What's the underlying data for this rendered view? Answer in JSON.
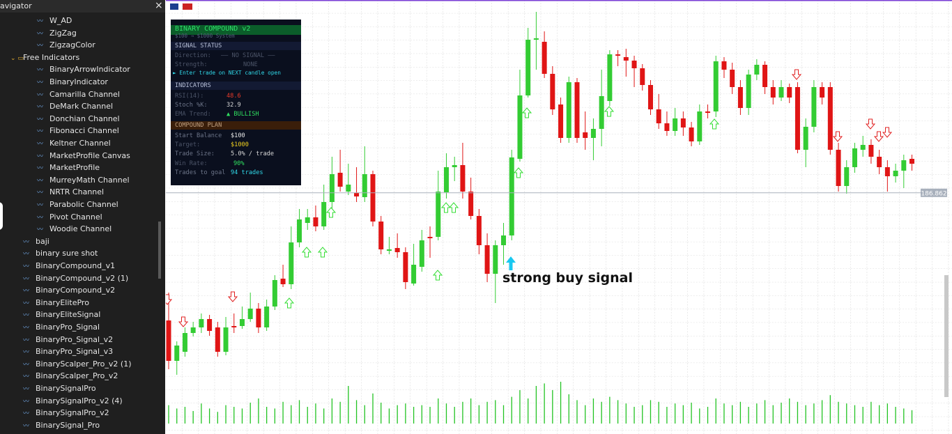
{
  "navigator": {
    "title": "avigator",
    "close": "×",
    "top_items": [
      "W_AD",
      "ZigZag",
      "ZigzagColor"
    ],
    "folder": {
      "name": "Free Indicators",
      "items": [
        "BinaryArrowIndicator",
        "BinaryIndicator",
        "Camarilla Channel",
        "DeMark Channel",
        "Donchian Channel",
        "Fibonacci Channel",
        "Keltner Channel",
        "MarketProfile Canvas",
        "MarketProfile",
        "MurreyMath Channel",
        "NRTR Channel",
        "Parabolic Channel",
        "Pivot Channel",
        "Woodie Channel"
      ]
    },
    "root_items": [
      "baji",
      "binary sure shot",
      "BinaryCompound_v1",
      "BinaryCompound_v2 (1)",
      "BinaryCompound_v2",
      "BinaryElitePro",
      "BinaryEliteSignal",
      "BinaryPro_Signal",
      "BinaryPro_Signal_v2",
      "BinaryPro_Signal_v3",
      "BinaryScalper_Pro_v2 (1)",
      "BinaryScalper_Pro_v2",
      "BinarySignalPro",
      "BinarySignalPro_v2 (4)",
      "BinarySignalPro_v2",
      "BinarySignal_Pro"
    ]
  },
  "panel": {
    "title": "BINARY COMPOUND v2",
    "subtitle": "$100 → $1000 System",
    "signal_header": "SIGNAL STATUS",
    "direction_label": "Direction:",
    "direction_value": "—— NO SIGNAL ——",
    "strength_label": "Strength:",
    "strength_value": "NONE",
    "instruction": "► Enter trade on NEXT candle open",
    "indicators_header": "INDICATORS",
    "rsi_label": "RSI(14):",
    "rsi_value": "48.6",
    "stoch_label": "Stoch %K:",
    "stoch_value": "32.9",
    "ema_label": "EMA Trend:",
    "ema_value": "▲ BULLISH",
    "plan_header": "COMPOUND PLAN",
    "start_label": "Start Balance",
    "start_value": "$100",
    "target_label": "Target:",
    "target_value": "$1000",
    "size_label": "Trade Size:",
    "size_value": "5.0% / trade",
    "winrate_label": "Win Rate:",
    "winrate_value": "90%",
    "trades_label": "Trades to goal",
    "trades_value": "94 trades"
  },
  "annotation": "strong buy signal",
  "chart_data": {
    "type": "candlestick",
    "ylim": [
      184.23,
      189.63
    ],
    "current_price": 186.862,
    "up_color": "#33cc33",
    "down_color": "#e01515",
    "volume_color": "#22c322",
    "volume_lim": [
      0,
      100
    ],
    "ohlc": [
      [
        185.03,
        185.43,
        184.33,
        184.45
      ],
      [
        184.45,
        184.73,
        184.25,
        184.67
      ],
      [
        184.58,
        184.93,
        184.51,
        184.85
      ],
      [
        184.85,
        185.01,
        184.8,
        184.93
      ],
      [
        184.93,
        185.13,
        184.85,
        185.05
      ],
      [
        185.05,
        185.11,
        184.81,
        184.88
      ],
      [
        184.93,
        185.01,
        184.51,
        184.58
      ],
      [
        184.58,
        185.08,
        184.53,
        184.93
      ],
      [
        184.95,
        185.13,
        184.85,
        184.93
      ],
      [
        184.95,
        185.23,
        184.91,
        185.05
      ],
      [
        185.05,
        185.43,
        185.01,
        185.2
      ],
      [
        185.2,
        185.28,
        184.85,
        184.93
      ],
      [
        184.93,
        185.33,
        184.88,
        185.23
      ],
      [
        185.23,
        185.68,
        185.18,
        185.61
      ],
      [
        185.63,
        185.83,
        185.51,
        185.55
      ],
      [
        185.55,
        186.38,
        185.48,
        186.15
      ],
      [
        186.15,
        186.63,
        186.08,
        186.48
      ],
      [
        186.43,
        186.63,
        186.33,
        186.51
      ],
      [
        186.51,
        186.68,
        186.31,
        186.38
      ],
      [
        186.38,
        186.98,
        186.33,
        186.73
      ],
      [
        186.73,
        187.38,
        186.63,
        187.13
      ],
      [
        187.15,
        187.48,
        186.88,
        186.95
      ],
      [
        186.88,
        187.28,
        186.83,
        186.98
      ],
      [
        186.86,
        187.23,
        186.73,
        186.81
      ],
      [
        186.8,
        187.53,
        186.73,
        187.13
      ],
      [
        187.13,
        187.18,
        186.38,
        186.45
      ],
      [
        186.45,
        186.53,
        185.98,
        186.05
      ],
      [
        186.03,
        186.23,
        185.98,
        186.05
      ],
      [
        186.07,
        186.28,
        185.93,
        186.01
      ],
      [
        186.01,
        186.08,
        185.48,
        185.58
      ],
      [
        185.56,
        186.13,
        185.53,
        185.83
      ],
      [
        185.8,
        186.33,
        185.73,
        186.18
      ],
      [
        186.23,
        186.38,
        185.93,
        186.21
      ],
      [
        186.23,
        187.18,
        186.18,
        186.88
      ],
      [
        186.87,
        187.43,
        186.78,
        187.23
      ],
      [
        187.23,
        187.38,
        187.03,
        187.26
      ],
      [
        187.26,
        187.58,
        186.78,
        186.88
      ],
      [
        186.88,
        187.08,
        186.48,
        186.53
      ],
      [
        186.53,
        186.63,
        185.98,
        186.11
      ],
      [
        186.11,
        186.28,
        185.58,
        185.7
      ],
      [
        185.7,
        186.18,
        185.28,
        186.11
      ],
      [
        186.11,
        186.43,
        185.83,
        186.25
      ],
      [
        186.25,
        187.48,
        186.18,
        187.37
      ],
      [
        187.35,
        188.63,
        187.31,
        188.26
      ],
      [
        188.26,
        189.23,
        188.23,
        189.06
      ],
      [
        189.06,
        189.46,
        188.63,
        189.08
      ],
      [
        189.03,
        189.18,
        188.51,
        188.57
      ],
      [
        188.57,
        188.68,
        187.98,
        188.06
      ],
      [
        188.13,
        188.23,
        187.58,
        187.65
      ],
      [
        187.65,
        188.53,
        187.58,
        188.45
      ],
      [
        188.45,
        188.51,
        187.58,
        187.65
      ],
      [
        187.73,
        188.03,
        187.48,
        187.65
      ],
      [
        187.65,
        187.93,
        187.33,
        187.78
      ],
      [
        187.78,
        188.63,
        187.53,
        188.25
      ],
      [
        188.18,
        188.91,
        188.11,
        188.85
      ],
      [
        188.85,
        188.91,
        188.68,
        188.83
      ],
      [
        188.81,
        188.93,
        188.53,
        188.76
      ],
      [
        188.76,
        188.83,
        188.38,
        188.65
      ],
      [
        188.65,
        188.71,
        188.33,
        188.41
      ],
      [
        188.41,
        188.48,
        187.98,
        188.06
      ],
      [
        188.06,
        188.28,
        187.78,
        187.86
      ],
      [
        187.86,
        188.03,
        187.68,
        187.75
      ],
      [
        187.75,
        188.08,
        187.68,
        187.93
      ],
      [
        187.93,
        188.03,
        187.68,
        187.8
      ],
      [
        187.8,
        187.88,
        187.53,
        187.6
      ],
      [
        187.6,
        188.13,
        187.55,
        188.03
      ],
      [
        188.03,
        188.13,
        187.93,
        188.01
      ],
      [
        188.03,
        188.83,
        187.95,
        188.75
      ],
      [
        188.75,
        188.81,
        188.51,
        188.63
      ],
      [
        188.63,
        188.73,
        188.28,
        188.38
      ],
      [
        188.38,
        188.48,
        187.98,
        188.08
      ],
      [
        188.08,
        188.63,
        187.98,
        188.56
      ],
      [
        188.56,
        188.78,
        188.48,
        188.7
      ],
      [
        188.7,
        188.75,
        188.28,
        188.38
      ],
      [
        188.38,
        188.48,
        188.13,
        188.23
      ],
      [
        188.23,
        188.48,
        188.18,
        188.38
      ],
      [
        188.38,
        188.43,
        188.15,
        188.23
      ],
      [
        188.38,
        188.45,
        187.43,
        187.48
      ],
      [
        187.48,
        187.93,
        187.23,
        187.81
      ],
      [
        187.81,
        188.48,
        187.73,
        188.38
      ],
      [
        188.38,
        188.45,
        188.13,
        188.23
      ],
      [
        188.38,
        188.45,
        187.41,
        187.48
      ],
      [
        187.48,
        187.58,
        186.88,
        186.96
      ],
      [
        186.96,
        187.33,
        186.85,
        187.23
      ],
      [
        187.23,
        187.58,
        187.15,
        187.5
      ],
      [
        187.48,
        187.68,
        187.38,
        187.55
      ],
      [
        187.55,
        187.63,
        187.28,
        187.38
      ],
      [
        187.38,
        187.48,
        187.13,
        187.23
      ],
      [
        187.23,
        187.33,
        186.88,
        187.1
      ],
      [
        187.1,
        187.28,
        187.01,
        187.18
      ],
      [
        187.18,
        187.41,
        186.93,
        187.33
      ],
      [
        187.35,
        187.41,
        187.18,
        187.28
      ]
    ],
    "volume": [
      22,
      18,
      20,
      15,
      24,
      18,
      14,
      22,
      20,
      18,
      25,
      30,
      20,
      18,
      26,
      22,
      28,
      20,
      24,
      18,
      30,
      26,
      45,
      28,
      22,
      36,
      25,
      18,
      22,
      24,
      20,
      22,
      20,
      30,
      24,
      20,
      26,
      30,
      22,
      26,
      28,
      22,
      32,
      40,
      30,
      45,
      48,
      40,
      50,
      35,
      28,
      22,
      30,
      26,
      32,
      28,
      24,
      20,
      22,
      28,
      26,
      20,
      24,
      22,
      25,
      18,
      20,
      30,
      24,
      22,
      26,
      20,
      24,
      28,
      22,
      25,
      30,
      26,
      22,
      24,
      28,
      34,
      26,
      24,
      22,
      20,
      26,
      22,
      24,
      20,
      18,
      16
    ]
  }
}
